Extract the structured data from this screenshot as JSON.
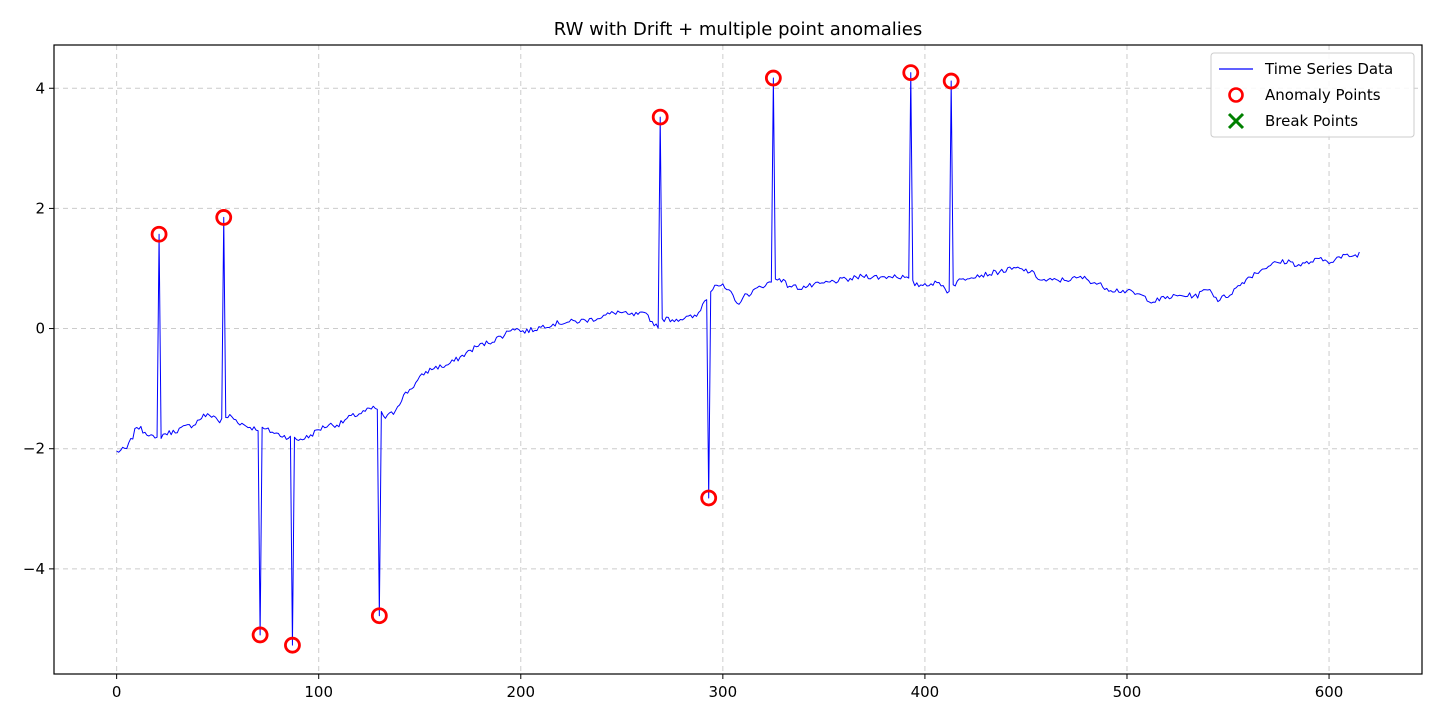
{
  "chart_data": {
    "type": "line",
    "title": "RW with Drift + multiple point anomalies",
    "xlabel": "",
    "ylabel": "",
    "xlim": [
      -31,
      646
    ],
    "ylim": [
      -5.75,
      4.72
    ],
    "xticks": [
      0,
      100,
      200,
      300,
      400,
      500,
      600
    ],
    "yticks": [
      -4,
      -2,
      0,
      2,
      4
    ],
    "grid": true,
    "legend": {
      "placement": "top-right",
      "entries": [
        "Time Series Data",
        "Anomaly Points",
        "Break Points"
      ]
    },
    "colors": {
      "series": "#0000ff",
      "anomaly": "#ff0000",
      "break": "#008000"
    },
    "series": [
      {
        "name": "Time Series Data",
        "anchors": [
          [
            0,
            -2.05
          ],
          [
            3,
            -2.02
          ],
          [
            5,
            -2.0
          ],
          [
            8,
            -1.8
          ],
          [
            10,
            -1.62
          ],
          [
            13,
            -1.7
          ],
          [
            16,
            -1.75
          ],
          [
            19,
            -1.85
          ],
          [
            24,
            -1.75
          ],
          [
            28,
            -1.72
          ],
          [
            33,
            -1.65
          ],
          [
            38,
            -1.6
          ],
          [
            43,
            -1.45
          ],
          [
            48,
            -1.45
          ],
          [
            51,
            -1.55
          ],
          [
            56,
            -1.45
          ],
          [
            60,
            -1.55
          ],
          [
            64,
            -1.62
          ],
          [
            68,
            -1.66
          ],
          [
            74,
            -1.68
          ],
          [
            79,
            -1.75
          ],
          [
            84,
            -1.8
          ],
          [
            90,
            -1.85
          ],
          [
            95,
            -1.8
          ],
          [
            100,
            -1.68
          ],
          [
            105,
            -1.6
          ],
          [
            110,
            -1.6
          ],
          [
            115,
            -1.48
          ],
          [
            120,
            -1.42
          ],
          [
            125,
            -1.35
          ],
          [
            128,
            -1.32
          ],
          [
            133,
            -1.48
          ],
          [
            137,
            -1.4
          ],
          [
            142,
            -1.12
          ],
          [
            147,
            -0.95
          ],
          [
            152,
            -0.75
          ],
          [
            157,
            -0.65
          ],
          [
            163,
            -0.62
          ],
          [
            170,
            -0.48
          ],
          [
            178,
            -0.3
          ],
          [
            185,
            -0.22
          ],
          [
            192,
            -0.1
          ],
          [
            196,
            0.02
          ],
          [
            201,
            -0.05
          ],
          [
            206,
            -0.02
          ],
          [
            212,
            0.05
          ],
          [
            220,
            0.1
          ],
          [
            228,
            0.12
          ],
          [
            235,
            0.15
          ],
          [
            242,
            0.22
          ],
          [
            248,
            0.28
          ],
          [
            254,
            0.22
          ],
          [
            259,
            0.24
          ],
          [
            263,
            0.22
          ],
          [
            265,
            0.1
          ],
          [
            268,
            0.05
          ],
          [
            271,
            0.16
          ],
          [
            276,
            0.15
          ],
          [
            282,
            0.18
          ],
          [
            287,
            0.2
          ],
          [
            290,
            0.4
          ],
          [
            296,
            0.75
          ],
          [
            300,
            0.7
          ],
          [
            304,
            0.58
          ],
          [
            307,
            0.4
          ],
          [
            310,
            0.52
          ],
          [
            315,
            0.62
          ],
          [
            320,
            0.72
          ],
          [
            323,
            0.76
          ],
          [
            328,
            0.85
          ],
          [
            332,
            0.72
          ],
          [
            338,
            0.68
          ],
          [
            345,
            0.72
          ],
          [
            350,
            0.75
          ],
          [
            357,
            0.8
          ],
          [
            363,
            0.82
          ],
          [
            370,
            0.88
          ],
          [
            378,
            0.85
          ],
          [
            385,
            0.88
          ],
          [
            390,
            0.85
          ],
          [
            396,
            0.72
          ],
          [
            402,
            0.75
          ],
          [
            408,
            0.75
          ],
          [
            411,
            0.62
          ],
          [
            416,
            0.78
          ],
          [
            423,
            0.88
          ],
          [
            430,
            0.9
          ],
          [
            437,
            0.95
          ],
          [
            445,
            1.0
          ],
          [
            452,
            0.95
          ],
          [
            458,
            0.8
          ],
          [
            465,
            0.8
          ],
          [
            472,
            0.82
          ],
          [
            478,
            0.85
          ],
          [
            485,
            0.75
          ],
          [
            492,
            0.65
          ],
          [
            500,
            0.62
          ],
          [
            507,
            0.55
          ],
          [
            513,
            0.45
          ],
          [
            520,
            0.52
          ],
          [
            528,
            0.55
          ],
          [
            535,
            0.55
          ],
          [
            540,
            0.68
          ],
          [
            545,
            0.48
          ],
          [
            550,
            0.55
          ],
          [
            555,
            0.7
          ],
          [
            560,
            0.85
          ],
          [
            565,
            0.95
          ],
          [
            570,
            1.05
          ],
          [
            575,
            1.1
          ],
          [
            580,
            1.12
          ],
          [
            585,
            1.05
          ],
          [
            590,
            1.1
          ],
          [
            595,
            1.15
          ],
          [
            600,
            1.12
          ],
          [
            605,
            1.18
          ],
          [
            610,
            1.22
          ],
          [
            612,
            1.2
          ],
          [
            615,
            1.25
          ]
        ]
      }
    ],
    "anomalies": [
      {
        "x": 21,
        "y": 1.57
      },
      {
        "x": 53,
        "y": 1.85
      },
      {
        "x": 71,
        "y": -5.1
      },
      {
        "x": 87,
        "y": -5.27
      },
      {
        "x": 130,
        "y": -4.78
      },
      {
        "x": 269,
        "y": 3.52
      },
      {
        "x": 293,
        "y": -2.82
      },
      {
        "x": 325,
        "y": 4.17
      },
      {
        "x": 393,
        "y": 4.26
      },
      {
        "x": 413,
        "y": 4.12
      }
    ],
    "break_points": []
  }
}
